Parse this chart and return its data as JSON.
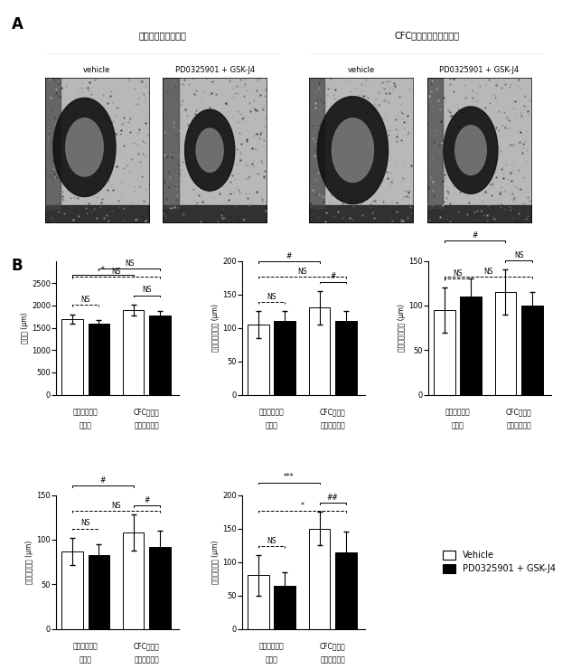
{
  "panel_A_label": "A",
  "panel_B_label": "B",
  "control_group_label": "コントロールマウス",
  "cfc_group_label": "CFC症候群モデルマウス",
  "vehicle_label": "vehicle",
  "pd_label": "PD0325901 + GSK-J4",
  "legend_vehicle": "Vehicle",
  "legend_pd": "PD0325901 + GSK-J4",
  "chart1": {
    "ylabel": "心容径 (μm)",
    "ylim": [
      0,
      3000
    ],
    "yticks": [
      0,
      500,
      1000,
      1500,
      2000,
      2500
    ],
    "bars": [
      1700,
      1600,
      1900,
      1780
    ],
    "errors": [
      100,
      80,
      120,
      90
    ],
    "sig_inner_ctrl": "NS",
    "sig_inner_cfc": "NS",
    "sig_vehicle_cross": "*",
    "sig_pd_cross": "NS",
    "sig_top": "NS"
  },
  "chart2": {
    "ylabel": "肺動脈弁の厚み (μm)",
    "ylim": [
      0,
      200
    ],
    "yticks": [
      0,
      50,
      100,
      150,
      200
    ],
    "bars": [
      105,
      110,
      130,
      110
    ],
    "errors": [
      20,
      15,
      25,
      15
    ],
    "sig_inner_ctrl": "NS",
    "sig_inner_cfc": "#",
    "sig_vehicle_cross": "#",
    "sig_pd_cross": "",
    "sig_top": "NS"
  },
  "chart3": {
    "ylabel": "大動脈弁の厚み (μm)",
    "ylim": [
      0,
      150
    ],
    "yticks": [
      0,
      50,
      100,
      150
    ],
    "bars": [
      95,
      110,
      115,
      100
    ],
    "errors": [
      25,
      20,
      25,
      15
    ],
    "sig_inner_ctrl": "NS",
    "sig_inner_cfc": "NS",
    "sig_vehicle_cross": "#",
    "sig_pd_cross": "",
    "sig_top": "NS"
  },
  "chart4": {
    "ylabel": "三尖弁の厚み (μm)",
    "ylim": [
      0,
      150
    ],
    "yticks": [
      0,
      50,
      100,
      150
    ],
    "bars": [
      87,
      83,
      108,
      92
    ],
    "errors": [
      15,
      12,
      20,
      18
    ],
    "sig_inner_ctrl": "NS",
    "sig_inner_cfc": "#",
    "sig_vehicle_cross": "#",
    "sig_pd_cross": "",
    "sig_top": "NS"
  },
  "chart5": {
    "ylabel": "僧帽弁の厚み (μm)",
    "ylim": [
      0,
      200
    ],
    "yticks": [
      0,
      50,
      100,
      150,
      200
    ],
    "bars": [
      80,
      65,
      150,
      115
    ],
    "errors": [
      30,
      20,
      25,
      30
    ],
    "sig_inner_ctrl": "NS",
    "sig_inner_cfc": "##",
    "sig_vehicle_cross": "***",
    "sig_pd_cross": "",
    "sig_top": "*"
  },
  "bar_colors": [
    "white",
    "black",
    "white",
    "black"
  ],
  "bar_hatch": [
    "",
    "///",
    "",
    "///"
  ],
  "bar_edgecolor": "black",
  "bg_color": "white",
  "text_color": "black",
  "font_size": 7,
  "img_group_titles": [
    "コントロールマウス",
    "CFC症候群モデルマウス"
  ],
  "img_sub_labels": [
    "vehicle",
    "PD0325901 + GSK-J4"
  ],
  "xlabels_ctrl": [
    "コントロール",
    "マウス"
  ],
  "xlabels_cfc": [
    "CFC症候群",
    "モデルマウス"
  ]
}
